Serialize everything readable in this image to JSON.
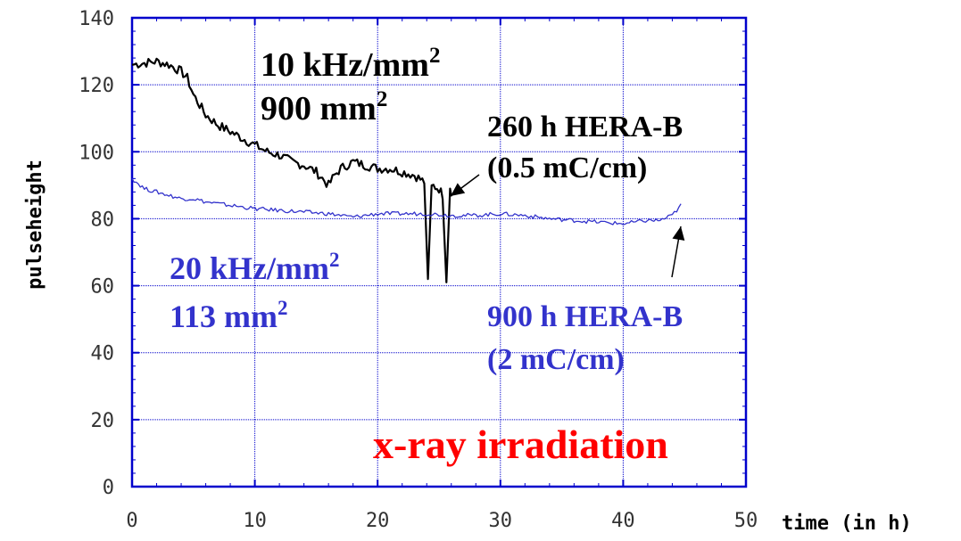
{
  "chart_data": {
    "type": "line",
    "xlabel": "time (in h)",
    "ylabel": "pulseheight",
    "xlim": [
      0,
      50
    ],
    "ylim": [
      0,
      140
    ],
    "xticks": [
      "0",
      "10",
      "20",
      "30",
      "40",
      "50"
    ],
    "yticks": [
      "0",
      "20",
      "40",
      "60",
      "80",
      "100",
      "120",
      "140"
    ],
    "grid": true,
    "series": [
      {
        "color": "#000000",
        "points": [
          [
            0,
            126
          ],
          [
            1,
            126.5
          ],
          [
            2,
            127
          ],
          [
            3,
            126
          ],
          [
            4,
            124
          ],
          [
            4.5,
            122
          ],
          [
            5,
            117
          ],
          [
            6,
            111
          ],
          [
            7,
            108
          ],
          [
            8,
            106
          ],
          [
            9,
            104
          ],
          [
            10,
            102
          ],
          [
            11,
            100
          ],
          [
            12,
            99
          ],
          [
            13,
            97
          ],
          [
            14,
            96
          ],
          [
            15,
            94
          ],
          [
            16,
            90
          ],
          [
            16.5,
            93
          ],
          [
            17,
            95
          ],
          [
            18,
            97
          ],
          [
            19,
            96
          ],
          [
            20,
            95
          ],
          [
            21,
            95
          ],
          [
            22,
            94
          ],
          [
            23,
            93
          ],
          [
            23.8,
            91
          ],
          [
            24.1,
            62
          ],
          [
            24.4,
            90
          ],
          [
            25,
            89
          ],
          [
            25.3,
            87
          ],
          [
            25.6,
            61
          ],
          [
            25.9,
            89
          ],
          [
            26,
            88
          ]
        ]
      },
      {
        "color": "#3333cc",
        "points": [
          [
            0,
            92
          ],
          [
            1,
            89
          ],
          [
            2,
            88
          ],
          [
            3,
            87
          ],
          [
            4,
            86
          ],
          [
            5,
            86
          ],
          [
            6,
            85
          ],
          [
            7,
            84.5
          ],
          [
            8,
            84
          ],
          [
            9,
            83.5
          ],
          [
            10,
            83
          ],
          [
            12,
            82.5
          ],
          [
            14,
            82
          ],
          [
            16,
            81.5
          ],
          [
            18,
            80.5
          ],
          [
            20,
            81.5
          ],
          [
            22,
            81.5
          ],
          [
            24,
            81.5
          ],
          [
            26,
            81
          ],
          [
            28,
            81
          ],
          [
            30,
            81.5
          ],
          [
            32,
            81
          ],
          [
            34,
            80
          ],
          [
            36,
            79.5
          ],
          [
            38,
            79
          ],
          [
            40,
            78.5
          ],
          [
            42,
            79.5
          ],
          [
            43,
            79.5
          ],
          [
            44,
            81
          ],
          [
            44.7,
            84
          ]
        ]
      }
    ],
    "annotations": [
      {
        "text": "10 kHz/mm",
        "sup": "2",
        "color": "#000000"
      },
      {
        "text": "900 mm",
        "sup": "2",
        "color": "#000000"
      },
      {
        "text": "260 h HERA-B",
        "color": "#000000"
      },
      {
        "text": "(0.5 mC/cm)",
        "color": "#000000"
      },
      {
        "text": "20 kHz/mm",
        "sup": "2",
        "color": "#3333cc"
      },
      {
        "text": "113 mm",
        "sup": "2",
        "color": "#3333cc"
      },
      {
        "text": "900 h HERA-B",
        "color": "#3333cc"
      },
      {
        "text": "(2 mC/cm)",
        "color": "#3333cc"
      },
      {
        "text": "x-ray irradiation",
        "color": "#ff0000"
      }
    ],
    "colors": {
      "frame": "#0000cc",
      "grid": "#0000cc",
      "series_black": "#000000",
      "series_blue": "#3333cc",
      "highlight": "#ff0000"
    }
  }
}
